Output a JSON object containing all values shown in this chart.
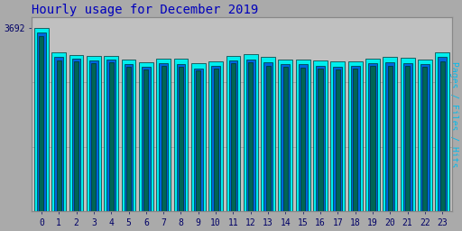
{
  "title": "Hourly usage for December 2019",
  "hours": [
    0,
    1,
    2,
    3,
    4,
    5,
    6,
    7,
    8,
    9,
    10,
    11,
    12,
    13,
    14,
    15,
    16,
    17,
    18,
    19,
    20,
    21,
    22,
    23
  ],
  "hits": [
    3692,
    3200,
    3150,
    3120,
    3130,
    3050,
    3000,
    3080,
    3070,
    2980,
    3020,
    3130,
    3160,
    3100,
    3060,
    3060,
    3030,
    3010,
    3020,
    3080,
    3110,
    3090,
    3060,
    3200
  ],
  "files": [
    3600,
    3110,
    3080,
    3040,
    3060,
    2970,
    2910,
    2980,
    2960,
    2880,
    2930,
    3040,
    3060,
    2990,
    2960,
    2960,
    2930,
    2910,
    2930,
    2980,
    2990,
    2980,
    2960,
    3100
  ],
  "pages": [
    3520,
    3040,
    3010,
    2980,
    3000,
    2910,
    2860,
    2920,
    2900,
    2830,
    2870,
    2980,
    3000,
    2930,
    2900,
    2890,
    2870,
    2850,
    2870,
    2920,
    2930,
    2920,
    2900,
    3020
  ],
  "hits_color": "#00EEEE",
  "files_color": "#0066DD",
  "pages_color": "#006655",
  "bar_edge_color": "#003333",
  "bg_color": "#AAAAAA",
  "plot_bg_color": "#C0C0C0",
  "title_color": "#0000BB",
  "ylabel_color": "#00BBEE",
  "tick_color": "#000066",
  "ylim_min": 0,
  "ylim_max": 3900,
  "ylabel": "Pages / Files / Hits"
}
